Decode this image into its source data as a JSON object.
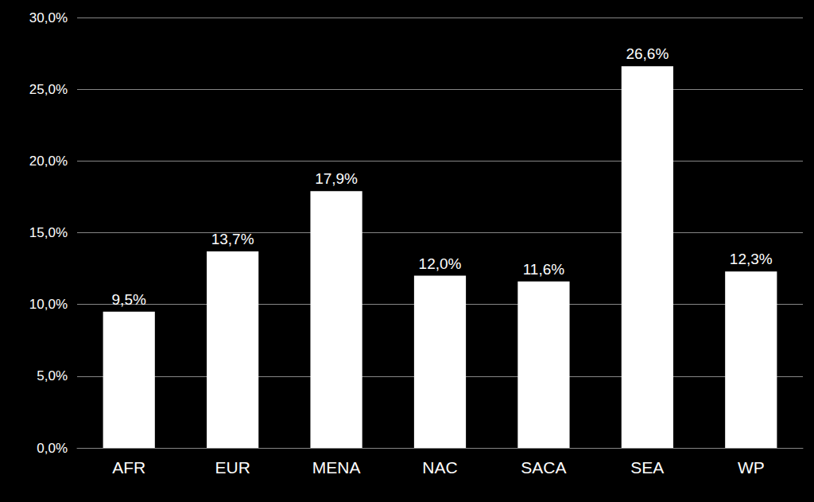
{
  "chart_data": {
    "type": "bar",
    "categories": [
      "AFR",
      "EUR",
      "MENA",
      "NAC",
      "SACA",
      "SEA",
      "WP"
    ],
    "values": [
      9.5,
      13.7,
      17.9,
      12.0,
      11.6,
      26.6,
      12.3
    ],
    "value_labels": [
      "9,5%",
      "13,7%",
      "17,9%",
      "12,0%",
      "11,6%",
      "26,6%",
      "12,3%"
    ],
    "color": "#ffffff",
    "ylim": [
      0,
      30
    ],
    "yticks": [
      {
        "value": 0,
        "label": "0,0%"
      },
      {
        "value": 5,
        "label": "5,0%"
      },
      {
        "value": 10,
        "label": "10,0%"
      },
      {
        "value": 15,
        "label": "15,0%"
      },
      {
        "value": 20,
        "label": "20,0%"
      },
      {
        "value": 25,
        "label": "25,0%"
      },
      {
        "value": 30,
        "label": "30,0%"
      }
    ],
    "grid": true,
    "data_labels": true
  }
}
